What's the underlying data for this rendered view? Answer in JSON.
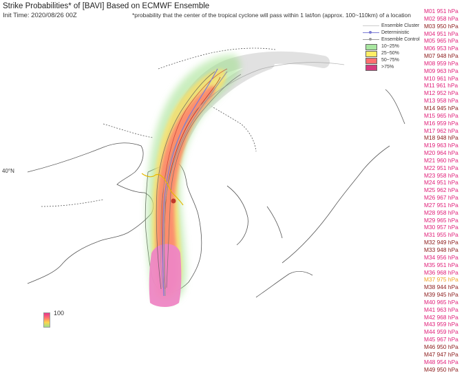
{
  "header": {
    "title": "Strike Probabilities* of [BAVI] Based on ECMWF Ensemble",
    "init_time": "Init Time: 2020/08/26 00Z",
    "note": "*probability that the center of the tropical cyclone will pass within 1 lat/lon (approx. 100~110km) of a location"
  },
  "map": {
    "lat_label": "40°N",
    "colors": {
      "land": "#ffffff",
      "sea": "#ffffff",
      "coast": "#555555",
      "cluster": "#dcdcdc",
      "deterministic": "#8585d6",
      "control": "#9a9a9a"
    }
  },
  "legend": {
    "items": [
      {
        "label": "Ensemble Cluster",
        "kind": "line",
        "color": "#cccccc"
      },
      {
        "label": "Deterministic",
        "kind": "dotline",
        "color": "#7b7bd4"
      },
      {
        "label": "Ensemble Control",
        "kind": "dotline",
        "color": "#999999"
      },
      {
        "label": "10~25%",
        "kind": "box",
        "color": "#a8e6a0"
      },
      {
        "label": "25~50%",
        "kind": "box",
        "color": "#ffee66"
      },
      {
        "label": "50~75%",
        "kind": "box",
        "color": "#ff6f6f"
      },
      {
        "label": ">75%",
        "kind": "box",
        "color": "#d63a7f"
      }
    ]
  },
  "members": [
    {
      "label": "M01 951 hPa",
      "color": "#e0207a"
    },
    {
      "label": "M02 958 hPa",
      "color": "#e0207a"
    },
    {
      "label": "M03 950 hPa",
      "color": "#8b1a1a"
    },
    {
      "label": "M04 951 hPa",
      "color": "#e0207a"
    },
    {
      "label": "M05 965 hPa",
      "color": "#e0207a"
    },
    {
      "label": "M06 953 hPa",
      "color": "#e0207a"
    },
    {
      "label": "M07 948 hPa",
      "color": "#8b1a1a"
    },
    {
      "label": "M08 959 hPa",
      "color": "#e0207a"
    },
    {
      "label": "M09 963 hPa",
      "color": "#e0207a"
    },
    {
      "label": "M10 961 hPa",
      "color": "#e0207a"
    },
    {
      "label": "M11 961 hPa",
      "color": "#e0207a"
    },
    {
      "label": "M12 952 hPa",
      "color": "#e0207a"
    },
    {
      "label": "M13 958 hPa",
      "color": "#e0207a"
    },
    {
      "label": "M14 945 hPa",
      "color": "#8b1a1a"
    },
    {
      "label": "M15 965 hPa",
      "color": "#e0207a"
    },
    {
      "label": "M16 959 hPa",
      "color": "#e0207a"
    },
    {
      "label": "M17 962 hPa",
      "color": "#e0207a"
    },
    {
      "label": "M18 948 hPa",
      "color": "#8b1a1a"
    },
    {
      "label": "M19 963 hPa",
      "color": "#e0207a"
    },
    {
      "label": "M20 964 hPa",
      "color": "#e0207a"
    },
    {
      "label": "M21 960 hPa",
      "color": "#e0207a"
    },
    {
      "label": "M22 951 hPa",
      "color": "#e0207a"
    },
    {
      "label": "M23 958 hPa",
      "color": "#e0207a"
    },
    {
      "label": "M24 951 hPa",
      "color": "#e0207a"
    },
    {
      "label": "M25 962 hPa",
      "color": "#e0207a"
    },
    {
      "label": "M26 967 hPa",
      "color": "#e0207a"
    },
    {
      "label": "M27 951 hPa",
      "color": "#e0207a"
    },
    {
      "label": "M28 958 hPa",
      "color": "#e0207a"
    },
    {
      "label": "M29 965 hPa",
      "color": "#e0207a"
    },
    {
      "label": "M30 957 hPa",
      "color": "#e0207a"
    },
    {
      "label": "M31 955 hPa",
      "color": "#e0207a"
    },
    {
      "label": "M32 949 hPa",
      "color": "#8b1a1a"
    },
    {
      "label": "M33 948 hPa",
      "color": "#8b1a1a"
    },
    {
      "label": "M34 956 hPa",
      "color": "#e0207a"
    },
    {
      "label": "M35 951 hPa",
      "color": "#e0207a"
    },
    {
      "label": "M36 968 hPa",
      "color": "#e0207a"
    },
    {
      "label": "M37 975 hPa",
      "color": "#f0a020"
    },
    {
      "label": "M38 944 hPa",
      "color": "#8b1a1a"
    },
    {
      "label": "M39 945 hPa",
      "color": "#8b1a1a"
    },
    {
      "label": "M40 965 hPa",
      "color": "#e0207a"
    },
    {
      "label": "M41 963 hPa",
      "color": "#e0207a"
    },
    {
      "label": "M42 968 hPa",
      "color": "#e0207a"
    },
    {
      "label": "M43 959 hPa",
      "color": "#e0207a"
    },
    {
      "label": "M44 959 hPa",
      "color": "#e0207a"
    },
    {
      "label": "M45 967 hPa",
      "color": "#e0207a"
    },
    {
      "label": "M46 950 hPa",
      "color": "#8b1a1a"
    },
    {
      "label": "M47 947 hPa",
      "color": "#8b1a1a"
    },
    {
      "label": "M48 954 hPa",
      "color": "#e0207a"
    },
    {
      "label": "M49 950 hPa",
      "color": "#8b1a1a"
    }
  ],
  "colorbar": {
    "max_label": "100"
  }
}
